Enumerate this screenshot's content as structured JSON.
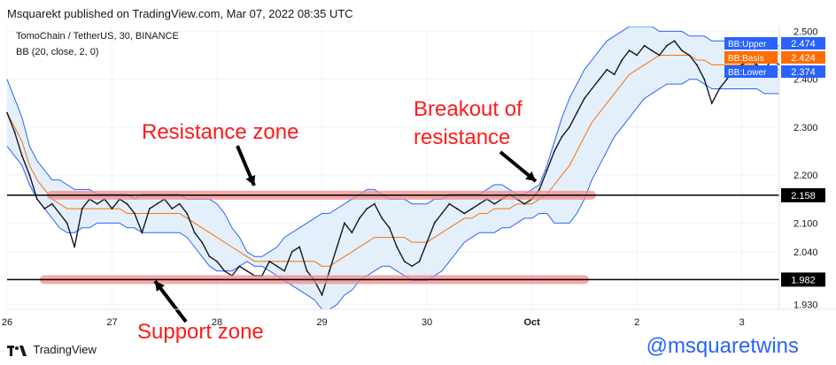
{
  "header": {
    "published": "Msquarekt published on TradingView.com, Mar 07, 2022 08:35 UTC"
  },
  "symbol": {
    "title": "TomoChain / TetherUS, 30, BINANCE",
    "indicator": "BB (20, close, 2, 0)"
  },
  "footer": {
    "logo": "TradingView",
    "watermark": "@msquaretwins"
  },
  "annotations": {
    "resistance": "Resistance zone",
    "support": "Support zone",
    "breakout_line1": "Breakout of",
    "breakout_line2": "resistance"
  },
  "chart_data": {
    "type": "line",
    "title": "TomoChain / TetherUS, 30, BINANCE",
    "x_tick_labels": [
      "26",
      "27",
      "28",
      "29",
      "30",
      "Oct",
      "2",
      "3"
    ],
    "x_tick_index": [
      0,
      14,
      28,
      42,
      56,
      70,
      84,
      98
    ],
    "y_tick_labels": [
      "2.500",
      "2.400",
      "2.300",
      "2.200",
      "2.100",
      "2.040",
      "1.930"
    ],
    "y_ticks": [
      2.5,
      2.4,
      2.3,
      2.2,
      2.1,
      2.04,
      1.93
    ],
    "ylim": [
      1.92,
      2.51
    ],
    "series": [
      {
        "name": "BB:Upper",
        "color": "#2962ff"
      },
      {
        "name": "BB:Basis",
        "color": "#ff6d00"
      },
      {
        "name": "BB:Lower",
        "color": "#2962ff"
      }
    ],
    "price_close": [
      2.33,
      2.29,
      2.24,
      2.2,
      2.15,
      2.13,
      2.14,
      2.12,
      2.1,
      2.05,
      2.13,
      2.15,
      2.14,
      2.15,
      2.13,
      2.15,
      2.14,
      2.12,
      2.08,
      2.13,
      2.14,
      2.15,
      2.13,
      2.14,
      2.12,
      2.08,
      2.06,
      2.03,
      2.02,
      2.0,
      1.99,
      2.01,
      2.0,
      1.99,
      1.99,
      2.02,
      2.01,
      2.0,
      2.04,
      2.05,
      2.0,
      1.98,
      1.95,
      2.0,
      2.05,
      2.1,
      2.08,
      2.11,
      2.13,
      2.14,
      2.11,
      2.09,
      2.05,
      2.02,
      2.01,
      2.02,
      2.06,
      2.1,
      2.12,
      2.14,
      2.13,
      2.12,
      2.13,
      2.14,
      2.15,
      2.14,
      2.15,
      2.16,
      2.15,
      2.14,
      2.15,
      2.17,
      2.21,
      2.25,
      2.28,
      2.3,
      2.33,
      2.36,
      2.38,
      2.4,
      2.42,
      2.41,
      2.44,
      2.46,
      2.45,
      2.47,
      2.46,
      2.45,
      2.47,
      2.48,
      2.46,
      2.45,
      2.43,
      2.4,
      2.35,
      2.38,
      2.4,
      2.42,
      2.43,
      2.44,
      2.43,
      2.42,
      2.44,
      2.43
    ],
    "bb_upper": [
      2.4,
      2.36,
      2.32,
      2.26,
      2.23,
      2.21,
      2.19,
      2.19,
      2.18,
      2.17,
      2.17,
      2.17,
      2.16,
      2.16,
      2.16,
      2.16,
      2.16,
      2.15,
      2.16,
      2.16,
      2.16,
      2.16,
      2.16,
      2.16,
      2.15,
      2.15,
      2.15,
      2.15,
      2.14,
      2.12,
      2.09,
      2.07,
      2.04,
      2.03,
      2.03,
      2.04,
      2.05,
      2.07,
      2.08,
      2.09,
      2.1,
      2.11,
      2.12,
      2.12,
      2.13,
      2.14,
      2.15,
      2.16,
      2.17,
      2.17,
      2.16,
      2.15,
      2.15,
      2.15,
      2.14,
      2.14,
      2.14,
      2.15,
      2.15,
      2.16,
      2.16,
      2.16,
      2.16,
      2.16,
      2.17,
      2.18,
      2.18,
      2.17,
      2.16,
      2.16,
      2.17,
      2.18,
      2.22,
      2.27,
      2.32,
      2.36,
      2.39,
      2.42,
      2.44,
      2.46,
      2.48,
      2.49,
      2.5,
      2.51,
      2.51,
      2.51,
      2.51,
      2.5,
      2.5,
      2.5,
      2.5,
      2.49,
      2.49,
      2.49,
      2.48,
      2.48,
      2.48,
      2.48,
      2.48,
      2.48,
      2.48,
      2.47,
      2.47,
      2.47
    ],
    "bb_basis": [
      2.33,
      2.3,
      2.27,
      2.22,
      2.19,
      2.17,
      2.15,
      2.14,
      2.13,
      2.13,
      2.13,
      2.13,
      2.13,
      2.13,
      2.13,
      2.13,
      2.12,
      2.12,
      2.12,
      2.12,
      2.12,
      2.12,
      2.12,
      2.12,
      2.11,
      2.1,
      2.09,
      2.08,
      2.07,
      2.06,
      2.05,
      2.04,
      2.03,
      2.02,
      2.02,
      2.02,
      2.02,
      2.02,
      2.02,
      2.02,
      2.02,
      2.02,
      2.01,
      2.01,
      2.02,
      2.03,
      2.04,
      2.05,
      2.06,
      2.07,
      2.07,
      2.07,
      2.07,
      2.07,
      2.06,
      2.06,
      2.06,
      2.07,
      2.08,
      2.09,
      2.1,
      2.11,
      2.11,
      2.12,
      2.12,
      2.13,
      2.13,
      2.13,
      2.14,
      2.14,
      2.14,
      2.15,
      2.16,
      2.18,
      2.2,
      2.22,
      2.25,
      2.28,
      2.31,
      2.33,
      2.35,
      2.37,
      2.39,
      2.41,
      2.42,
      2.43,
      2.44,
      2.45,
      2.45,
      2.45,
      2.45,
      2.45,
      2.44,
      2.44,
      2.43,
      2.43,
      2.43,
      2.43,
      2.43,
      2.43,
      2.43,
      2.42,
      2.42,
      2.42
    ],
    "bb_lower": [
      2.26,
      2.24,
      2.22,
      2.18,
      2.15,
      2.13,
      2.11,
      2.09,
      2.08,
      2.08,
      2.09,
      2.09,
      2.1,
      2.1,
      2.1,
      2.1,
      2.09,
      2.09,
      2.08,
      2.08,
      2.08,
      2.08,
      2.08,
      2.08,
      2.07,
      2.05,
      2.03,
      2.01,
      2.0,
      2.0,
      2.0,
      2.01,
      2.02,
      2.01,
      2.01,
      2.0,
      1.99,
      1.98,
      1.97,
      1.96,
      1.95,
      1.94,
      1.92,
      1.92,
      1.93,
      1.95,
      1.96,
      1.98,
      1.99,
      2.0,
      2.01,
      2.01,
      2.0,
      1.99,
      1.98,
      1.98,
      1.98,
      1.99,
      2.0,
      2.02,
      2.04,
      2.06,
      2.07,
      2.08,
      2.08,
      2.08,
      2.09,
      2.09,
      2.1,
      2.11,
      2.11,
      2.12,
      2.12,
      2.1,
      2.1,
      2.1,
      2.12,
      2.15,
      2.19,
      2.22,
      2.25,
      2.28,
      2.3,
      2.32,
      2.34,
      2.36,
      2.37,
      2.38,
      2.39,
      2.39,
      2.39,
      2.4,
      2.4,
      2.39,
      2.38,
      2.38,
      2.38,
      2.38,
      2.38,
      2.38,
      2.38,
      2.37,
      2.37,
      2.37
    ],
    "horizontal_lines": [
      {
        "label": "2.158",
        "value": 2.158
      },
      {
        "label": "1.982",
        "value": 1.982
      }
    ],
    "last_values": [
      {
        "name": "BB:Upper",
        "value": "2.474",
        "color": "#2962ff"
      },
      {
        "name": "BB:Basis",
        "value": "2.424",
        "color": "#ff6d00"
      },
      {
        "name": "BB:Lower",
        "value": "2.374",
        "color": "#2962ff"
      }
    ],
    "grid": true,
    "legend": "right"
  },
  "colors": {
    "zone": "#f28b8b",
    "arrow": "#000000",
    "annotation_text": "#ff1a1a"
  }
}
